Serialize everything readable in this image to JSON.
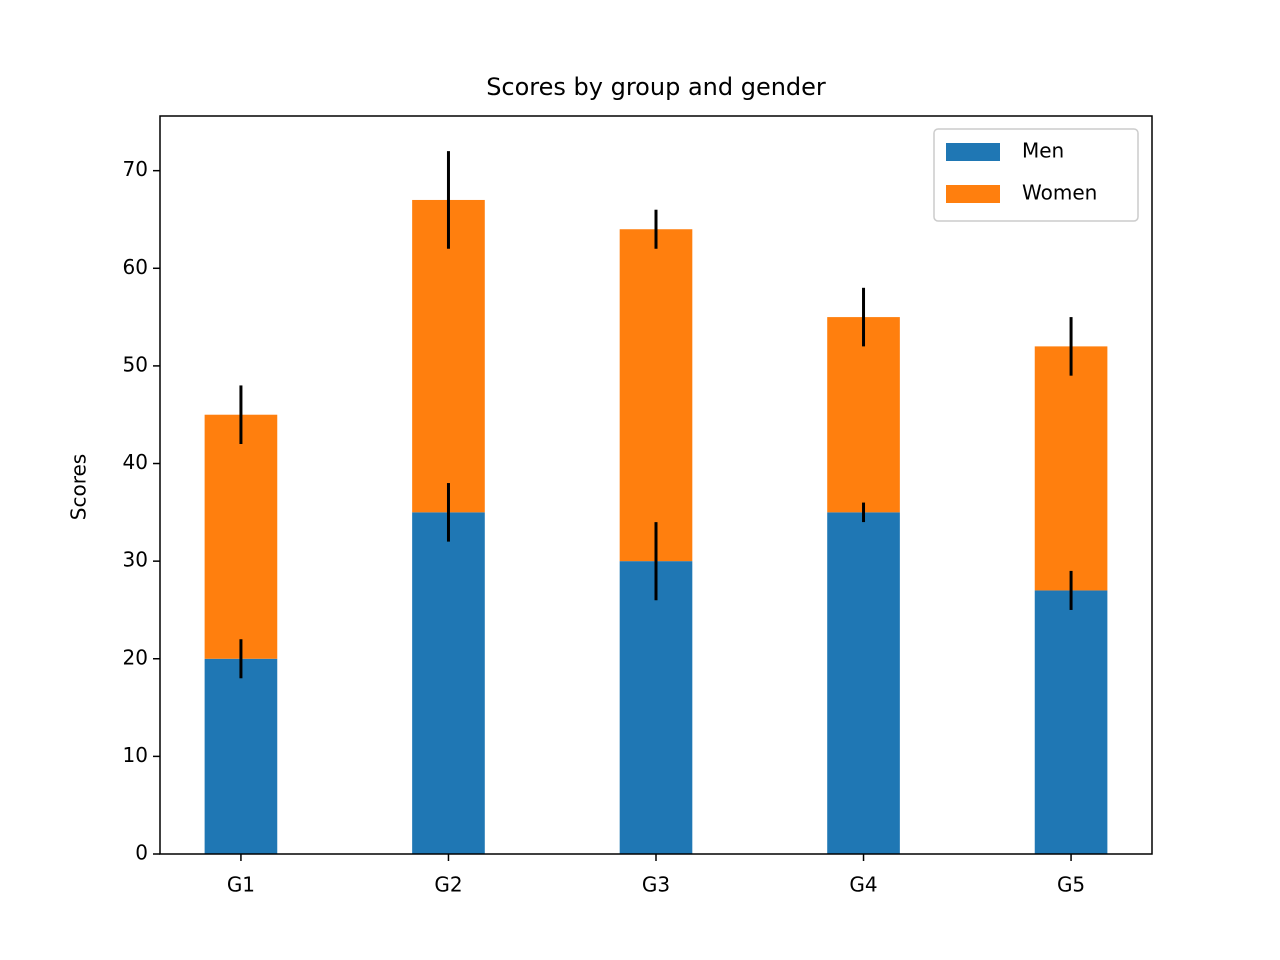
{
  "chart_data": {
    "type": "stacked-bar",
    "title": "Scores by group and gender",
    "y_label": "Scores",
    "categories": [
      "G1",
      "G2",
      "G3",
      "G4",
      "G5"
    ],
    "series": [
      {
        "name": "Men",
        "color": "#1f77b4",
        "values": [
          20,
          35,
          30,
          35,
          27
        ],
        "errors": [
          2,
          3,
          4,
          1,
          2
        ]
      },
      {
        "name": "Women",
        "color": "#ff7f0e",
        "values": [
          25,
          32,
          34,
          20,
          25
        ],
        "errors": [
          3,
          5,
          2,
          3,
          3
        ]
      }
    ],
    "ylim": [
      0,
      75.6
    ],
    "yticks": [
      0,
      10,
      20,
      30,
      40,
      50,
      60,
      70
    ],
    "legend": "upper right"
  }
}
